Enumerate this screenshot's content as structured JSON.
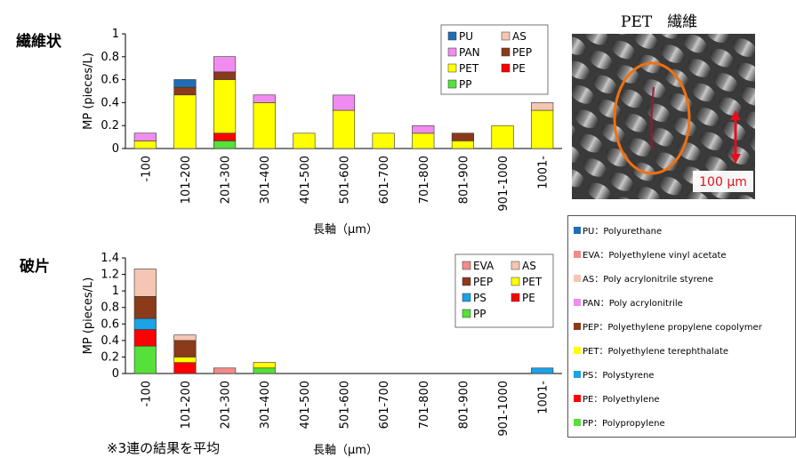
{
  "labels": {
    "fiber": "繊維状",
    "fragment": "破片",
    "photo_title": "PET　繊維",
    "scale_bar": "100 μm",
    "footnote": "※3連の結果を平均"
  },
  "colors": {
    "PU": "#1f6db5",
    "EVA": "#f28b8b",
    "AS": "#f5c6b3",
    "PAN": "#f08cf0",
    "PEP": "#8b3a1a",
    "PET": "#ffff00",
    "PS": "#1aa3e6",
    "PE": "#ff0000",
    "PP": "#55e03a",
    "ellipse": "#f07010",
    "arrow": "#e0101c"
  },
  "abbreviations": [
    {
      "key": "PU",
      "text": "PU：Polyurethane"
    },
    {
      "key": "EVA",
      "text": "EVA：Polyethylene vinyl acetate"
    },
    {
      "key": "AS",
      "text": "AS：Poly acrylonitrile styrene"
    },
    {
      "key": "PAN",
      "text": "PAN：Poly acrylonitrile"
    },
    {
      "key": "PEP",
      "text": "PEP：Polyethylene propylene  copolymer"
    },
    {
      "key": "PET",
      "text": "PET：Polyethylene terephthalate"
    },
    {
      "key": "PS",
      "text": "PS：Polystyrene"
    },
    {
      "key": "PE",
      "text": "PE：Polyethylene"
    },
    {
      "key": "PP",
      "text": "PP：Polypropylene"
    }
  ],
  "chart_data": [
    {
      "type": "bar",
      "stacked": true,
      "ylabel": "MP (pieces/L)",
      "xlabel": "長軸（μm）",
      "ylim": [
        0,
        1
      ],
      "yticks": [
        "0",
        "0.2",
        "0.4",
        "0.6",
        "0.8",
        "1"
      ],
      "legend_position": "top-right",
      "legend": [
        "PU",
        "AS",
        "PAN",
        "PEP",
        "PET",
        "PE",
        "PP"
      ],
      "categories": [
        "-100",
        "101-200",
        "201-300",
        "301-400",
        "401-500",
        "501-600",
        "601-700",
        "701-800",
        "801-900",
        "901-1000",
        "1001-"
      ],
      "series": [
        {
          "name": "PP",
          "values": [
            0,
            0,
            0.067,
            0,
            0,
            0,
            0,
            0,
            0,
            0,
            0
          ]
        },
        {
          "name": "PE",
          "values": [
            0,
            0,
            0.067,
            0,
            0,
            0,
            0,
            0,
            0,
            0,
            0
          ]
        },
        {
          "name": "PET",
          "values": [
            0.067,
            0.467,
            0.467,
            0.4,
            0.133,
            0.333,
            0.133,
            0.133,
            0.067,
            0.2,
            0.333
          ]
        },
        {
          "name": "PEP",
          "values": [
            0,
            0.067,
            0.067,
            0,
            0,
            0,
            0,
            0,
            0.067,
            0,
            0
          ]
        },
        {
          "name": "PAN",
          "values": [
            0.067,
            0,
            0.133,
            0.067,
            0,
            0.133,
            0,
            0.067,
            0,
            0,
            0
          ]
        },
        {
          "name": "AS",
          "values": [
            0,
            0,
            0,
            0,
            0,
            0,
            0,
            0,
            0,
            0,
            0.067
          ]
        },
        {
          "name": "PU",
          "values": [
            0,
            0.067,
            0,
            0,
            0,
            0,
            0,
            0,
            0,
            0,
            0
          ]
        }
      ]
    },
    {
      "type": "bar",
      "stacked": true,
      "ylabel": "MP (pieces/L)",
      "xlabel": "長軸（μm）",
      "ylim": [
        0,
        1.4
      ],
      "yticks": [
        "0",
        "0.2",
        "0.4",
        "0.6",
        "0.8",
        "1",
        "1.2",
        "1.4"
      ],
      "legend_position": "top-right",
      "legend": [
        "EVA",
        "AS",
        "PEP",
        "PET",
        "PS",
        "PE",
        "PP"
      ],
      "categories": [
        "-100",
        "101-200",
        "201-300",
        "301-400",
        "401-500",
        "501-600",
        "601-700",
        "701-800",
        "801-900",
        "901-1000",
        "1001-"
      ],
      "series": [
        {
          "name": "PP",
          "values": [
            0.333,
            0,
            0,
            0.067,
            0,
            0,
            0,
            0,
            0,
            0,
            0
          ]
        },
        {
          "name": "PE",
          "values": [
            0.2,
            0.133,
            0,
            0,
            0,
            0,
            0,
            0,
            0,
            0,
            0
          ]
        },
        {
          "name": "PS",
          "values": [
            0.133,
            0,
            0,
            0,
            0,
            0,
            0,
            0,
            0,
            0,
            0.067
          ]
        },
        {
          "name": "PET",
          "values": [
            0,
            0.067,
            0,
            0.067,
            0,
            0,
            0,
            0,
            0,
            0,
            0
          ]
        },
        {
          "name": "PEP",
          "values": [
            0.267,
            0.2,
            0,
            0,
            0,
            0,
            0,
            0,
            0,
            0,
            0
          ]
        },
        {
          "name": "AS",
          "values": [
            0.333,
            0.067,
            0,
            0,
            0,
            0,
            0,
            0,
            0,
            0,
            0
          ]
        },
        {
          "name": "EVA",
          "values": [
            0,
            0,
            0.067,
            0,
            0,
            0,
            0,
            0,
            0,
            0,
            0
          ]
        }
      ]
    }
  ]
}
